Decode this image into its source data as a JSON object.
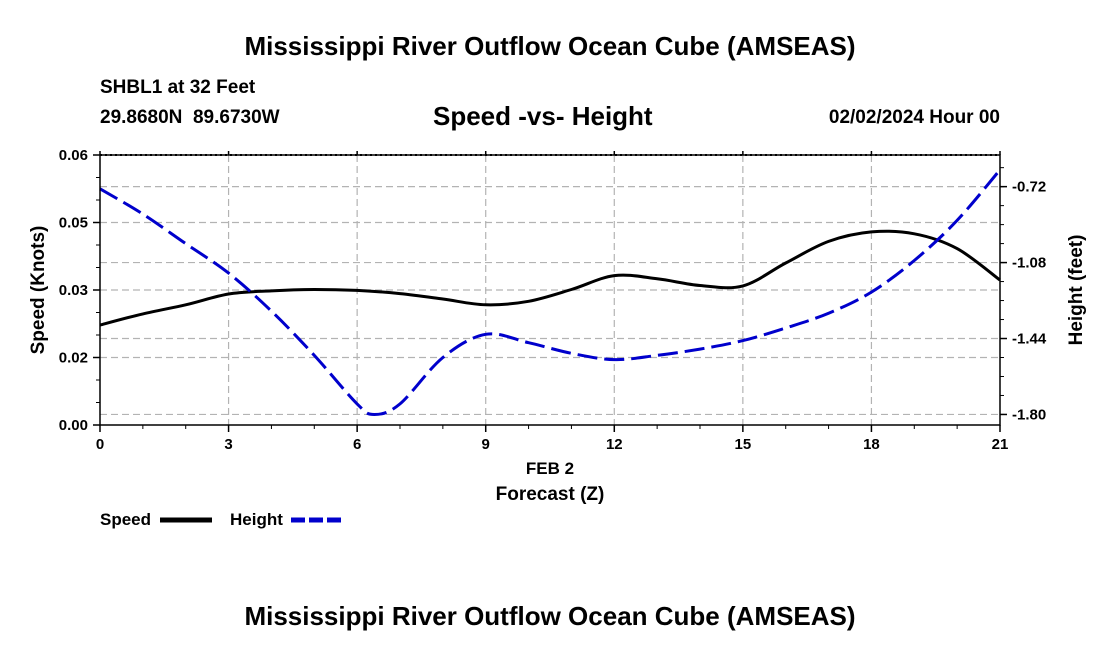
{
  "header": {
    "title": "Mississippi River Outflow Ocean Cube (AMSEAS)",
    "station": "SHBL1 at 32 Feet",
    "coords": "29.8680N  89.6730W",
    "chart_title": "Speed -vs- Height",
    "datetime": "02/02/2024 Hour 00"
  },
  "footer": {
    "title": "Mississippi River Outflow Ocean Cube (AMSEAS)"
  },
  "legend": {
    "speed_label": "Speed",
    "height_label": "Height"
  },
  "chart_data": {
    "type": "line",
    "title": "Speed -vs- Height",
    "xlabel": "Forecast (Z)",
    "xlabel_date": "FEB 2",
    "ylabel": "Speed (Knots)",
    "ylabel_right": "Height (feet)",
    "xlim": [
      0,
      21
    ],
    "ylim": [
      0,
      0.06
    ],
    "ylim_right": [
      -1.85,
      -0.57
    ],
    "x_ticks": [
      0,
      3,
      6,
      9,
      12,
      15,
      18,
      21
    ],
    "y_ticks": [
      {
        "value": 0,
        "label": "0.00"
      },
      {
        "value": 0.015,
        "label": "0.02"
      },
      {
        "value": 0.03,
        "label": "0.03"
      },
      {
        "value": 0.045,
        "label": "0.05"
      },
      {
        "value": 0.06,
        "label": "0.06"
      }
    ],
    "y_right_ticks": [
      {
        "value": -0.72,
        "label": "-0.72"
      },
      {
        "value": -1.08,
        "label": "-1.08"
      },
      {
        "value": -1.44,
        "label": "-1.44"
      },
      {
        "value": -1.8,
        "label": "-1.80"
      }
    ],
    "grid": true,
    "series": [
      {
        "name": "Speed",
        "axis": "left",
        "color": "#000000",
        "dash": "solid",
        "x": [
          0,
          1,
          2,
          3,
          4,
          5,
          6,
          7,
          8,
          9,
          10,
          11,
          12,
          13,
          14,
          15,
          16,
          17,
          18,
          19,
          20,
          21
        ],
        "values": [
          0.0222,
          0.0247,
          0.0267,
          0.0291,
          0.0298,
          0.0301,
          0.0299,
          0.0292,
          0.028,
          0.0267,
          0.0275,
          0.0301,
          0.0332,
          0.0325,
          0.031,
          0.0309,
          0.036,
          0.0408,
          0.0429,
          0.0425,
          0.0392,
          0.0322
        ]
      },
      {
        "name": "Height",
        "axis": "right",
        "color": "#0000cc",
        "dash": "dashed",
        "x": [
          0,
          1,
          2,
          3,
          4,
          5,
          6,
          6.4,
          7,
          8,
          9,
          10,
          11,
          12,
          13,
          14,
          15,
          16,
          17,
          18,
          19,
          20,
          21
        ],
        "values": [
          -0.73,
          -0.85,
          -0.99,
          -1.13,
          -1.31,
          -1.52,
          -1.75,
          -1.8,
          -1.75,
          -1.53,
          -1.42,
          -1.46,
          -1.51,
          -1.54,
          -1.52,
          -1.49,
          -1.45,
          -1.39,
          -1.32,
          -1.22,
          -1.07,
          -0.88,
          -0.64
        ]
      }
    ]
  }
}
